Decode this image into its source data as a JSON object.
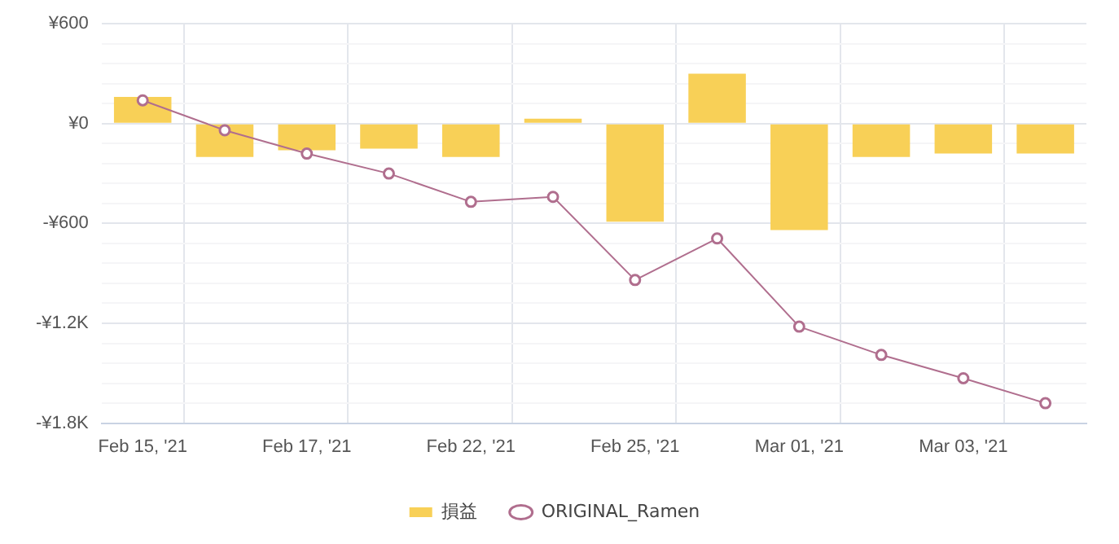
{
  "chart_data": {
    "type": "bar",
    "categories": [
      "Feb 15, '21",
      null,
      "Feb 17, '21",
      null,
      "Feb 22, '21",
      null,
      "Feb 25, '21",
      null,
      "Mar 01, '21",
      null,
      "Mar 03, '21",
      null
    ],
    "series": [
      {
        "name": "損益",
        "color": "#f8d057",
        "values": [
          160,
          -200,
          -160,
          -150,
          -200,
          30,
          -590,
          300,
          -640,
          -200,
          -180,
          -180
        ]
      },
      {
        "name": "ORIGINAL_Ramen",
        "type": "line",
        "color": "#b06e8e",
        "values": [
          140,
          -40,
          -180,
          -300,
          -470,
          -440,
          -940,
          -690,
          -1220,
          -1390,
          -1530,
          -1680
        ]
      }
    ],
    "ylim": [
      -1800,
      600
    ],
    "yticks": [
      {
        "value": -1800,
        "label": "-¥1.8K"
      },
      {
        "value": -1680,
        "label": null
      },
      {
        "value": -1560,
        "label": null
      },
      {
        "value": -1440,
        "label": null
      },
      {
        "value": -1320,
        "label": null
      },
      {
        "value": -1200,
        "label": "-¥1.2K"
      },
      {
        "value": -1080,
        "label": null
      },
      {
        "value": -960,
        "label": null
      },
      {
        "value": -840,
        "label": null
      },
      {
        "value": -720,
        "label": null
      },
      {
        "value": -600,
        "label": "-¥600"
      },
      {
        "value": -480,
        "label": null
      },
      {
        "value": -360,
        "label": null
      },
      {
        "value": -240,
        "label": null
      },
      {
        "value": -120,
        "label": null
      },
      {
        "value": 0,
        "label": "¥0"
      },
      {
        "value": 120,
        "label": null
      },
      {
        "value": 240,
        "label": null
      },
      {
        "value": 360,
        "label": null
      },
      {
        "value": 480,
        "label": null
      },
      {
        "value": 600,
        "label": "¥600"
      }
    ],
    "grid": true,
    "legend": "bottom",
    "marker": "circle",
    "line_style": "solid"
  }
}
